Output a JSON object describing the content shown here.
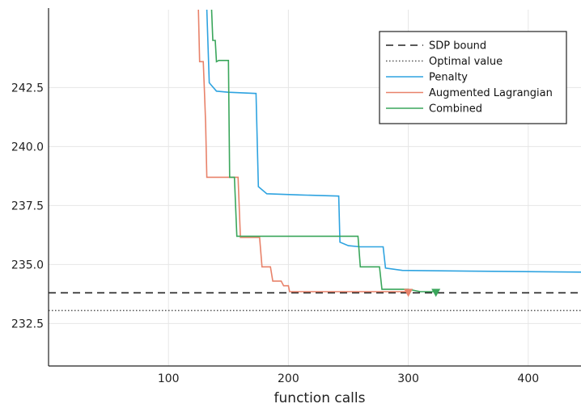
{
  "chart_data": {
    "type": "line",
    "title": "",
    "xlabel": "function calls",
    "ylabel": "",
    "xlim": [
      0,
      444
    ],
    "ylim": [
      230.7,
      245.8
    ],
    "xticks": [
      100,
      200,
      300,
      400
    ],
    "xtick_labels": [
      "100",
      "200",
      "300",
      "400"
    ],
    "yticks": [
      232.5,
      235.0,
      237.5,
      240.0,
      242.5
    ],
    "ytick_labels": [
      "232.5",
      "235.0",
      "237.5",
      "240.0",
      "242.5"
    ],
    "grid": true,
    "legend_position": "top-right",
    "hlines": [
      {
        "name": "SDP bound",
        "y": 233.8,
        "style": "dashed",
        "color": "#222222"
      },
      {
        "name": "Optimal value",
        "y": 233.05,
        "style": "dotted",
        "color": "#555555"
      }
    ],
    "series": [
      {
        "name": "Penalty",
        "color": "#2ea3e0",
        "step_points": [
          [
            132,
            245.8
          ],
          [
            134,
            242.7
          ],
          [
            140,
            242.35
          ],
          [
            150,
            242.3
          ],
          [
            173,
            242.25
          ],
          [
            175,
            238.3
          ],
          [
            182,
            238.0
          ],
          [
            210,
            237.95
          ],
          [
            242,
            237.9
          ],
          [
            243,
            235.95
          ],
          [
            250,
            235.8
          ],
          [
            260,
            235.75
          ],
          [
            279,
            235.75
          ],
          [
            281,
            234.85
          ],
          [
            295,
            234.75
          ],
          [
            350,
            234.72
          ],
          [
            444,
            234.68
          ]
        ]
      },
      {
        "name": "Augmented Lagrangian",
        "color": "#e8826a",
        "step_points": [
          [
            125,
            245.8
          ],
          [
            126,
            243.6
          ],
          [
            129,
            243.6
          ],
          [
            130,
            242.3
          ],
          [
            131,
            241.0
          ],
          [
            132,
            238.7
          ],
          [
            158,
            238.7
          ],
          [
            160,
            236.15
          ],
          [
            176,
            236.15
          ],
          [
            178,
            234.9
          ],
          [
            185,
            234.9
          ],
          [
            187,
            234.3
          ],
          [
            194,
            234.3
          ],
          [
            196,
            234.1
          ],
          [
            200,
            234.1
          ],
          [
            201,
            233.85
          ],
          [
            300,
            233.85
          ]
        ],
        "end_marker": {
          "x": 300,
          "y": 233.8
        }
      },
      {
        "name": "Combined",
        "color": "#3aa65b",
        "step_points": [
          [
            136,
            245.8
          ],
          [
            137,
            244.5
          ],
          [
            139,
            244.5
          ],
          [
            140,
            243.6
          ],
          [
            142,
            243.65
          ],
          [
            150,
            243.65
          ],
          [
            151,
            238.7
          ],
          [
            155,
            238.7
          ],
          [
            157,
            236.2
          ],
          [
            190,
            236.2
          ],
          [
            258,
            236.2
          ],
          [
            260,
            234.9
          ],
          [
            276,
            234.9
          ],
          [
            278,
            233.95
          ],
          [
            300,
            233.95
          ],
          [
            305,
            233.9
          ],
          [
            310,
            233.85
          ],
          [
            323,
            233.85
          ]
        ],
        "end_marker": {
          "x": 323,
          "y": 233.8
        }
      }
    ]
  }
}
